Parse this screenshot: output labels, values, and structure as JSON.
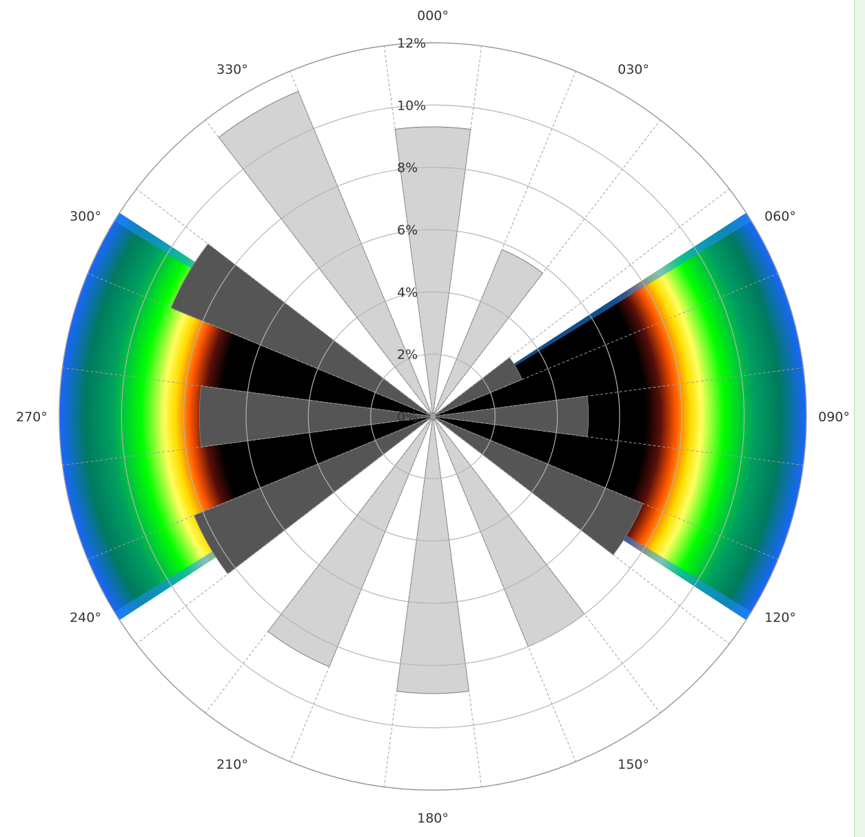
{
  "chart_data": {
    "type": "wind-rose",
    "direction_labels": [
      "000°",
      "030°",
      "060°",
      "090°",
      "120°",
      "150°",
      "180°",
      "210°",
      "240°",
      "270°",
      "300°",
      "330°"
    ],
    "radial_tick_labels": [
      "0%",
      "2%",
      "4%",
      "6%",
      "8%",
      "10%",
      "12%"
    ],
    "radial_range": [
      0,
      12
    ],
    "sector_width_deg": 15,
    "grid": true,
    "bars": [
      {
        "direction": 0,
        "value": 9.3
      },
      {
        "direction": 15,
        "value": 0
      },
      {
        "direction": 30,
        "value": 5.8
      },
      {
        "direction": 45,
        "value": 0
      },
      {
        "direction": 60,
        "value": 3.1
      },
      {
        "direction": 75,
        "value": 0
      },
      {
        "direction": 90,
        "value": 5.0
      },
      {
        "direction": 105,
        "value": 0
      },
      {
        "direction": 120,
        "value": 7.3
      },
      {
        "direction": 135,
        "value": 0
      },
      {
        "direction": 150,
        "value": 8.0
      },
      {
        "direction": 165,
        "value": 0
      },
      {
        "direction": 180,
        "value": 8.9
      },
      {
        "direction": 195,
        "value": 0
      },
      {
        "direction": 210,
        "value": 8.7
      },
      {
        "direction": 225,
        "value": 0
      },
      {
        "direction": 240,
        "value": 8.3
      },
      {
        "direction": 255,
        "value": 0
      },
      {
        "direction": 270,
        "value": 7.5
      },
      {
        "direction": 285,
        "value": 0
      },
      {
        "direction": 300,
        "value": 9.1
      },
      {
        "direction": 315,
        "value": 0
      },
      {
        "direction": 330,
        "value": 11.3
      },
      {
        "direction": 345,
        "value": 0
      }
    ],
    "overlay": {
      "type": "heatmap-bands",
      "sectors": [
        {
          "from_deg": 57,
          "to_deg": 123
        },
        {
          "from_deg": 237,
          "to_deg": 303
        }
      ],
      "colors": [
        "#000000",
        "#5a0f0a",
        "#ff5500",
        "#ffdd00",
        "#ffff60",
        "#00ff00",
        "#007a5e",
        "#1a66ff"
      ]
    },
    "colors": {
      "bar_fill": "#d3d3d3",
      "bar_stroke": "#7a7a7a",
      "bar_fill_in_overlay": "#555555",
      "grid": "#b4b4b4",
      "spoke": "#a0a0a0"
    }
  }
}
